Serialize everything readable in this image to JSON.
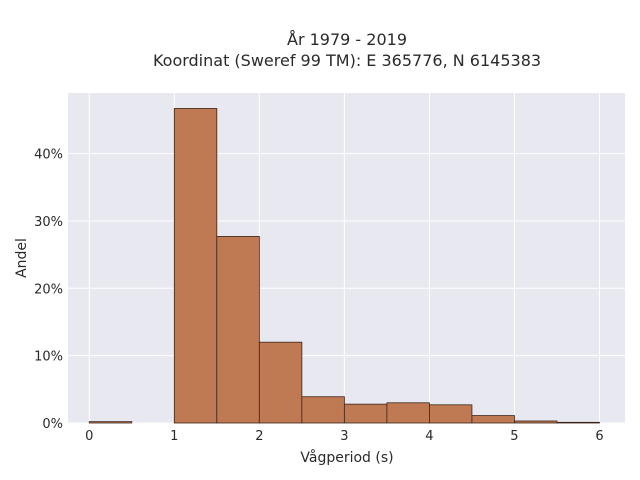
{
  "chart_data": {
    "type": "bar",
    "title_lines": [
      "År 1979 - 2019",
      "Koordinat (Sweref 99 TM): E 365776, N 6145383"
    ],
    "xlabel": "Vågperiod (s)",
    "ylabel": "Andel",
    "xlim": [
      -0.25,
      6.3
    ],
    "ylim": [
      0,
      0.49
    ],
    "xticks": [
      0,
      1,
      2,
      3,
      4,
      5,
      6
    ],
    "yticks": [
      0,
      0.1,
      0.2,
      0.3,
      0.4
    ],
    "ytick_labels": [
      "0%",
      "10%",
      "20%",
      "30%",
      "40%"
    ],
    "grid": true,
    "bar_color": "#c07a53",
    "bar_edge_color": "#3a2418",
    "background_color": "#e8e8f1",
    "bins": [
      {
        "start": 0.0,
        "end": 0.5,
        "value": 0.002
      },
      {
        "start": 0.5,
        "end": 1.0,
        "value": 0.0
      },
      {
        "start": 1.0,
        "end": 1.5,
        "value": 0.467
      },
      {
        "start": 1.5,
        "end": 2.0,
        "value": 0.277
      },
      {
        "start": 2.0,
        "end": 2.5,
        "value": 0.12
      },
      {
        "start": 2.5,
        "end": 3.0,
        "value": 0.039
      },
      {
        "start": 3.0,
        "end": 3.5,
        "value": 0.028
      },
      {
        "start": 3.5,
        "end": 4.0,
        "value": 0.03
      },
      {
        "start": 4.0,
        "end": 4.5,
        "value": 0.027
      },
      {
        "start": 4.5,
        "end": 5.0,
        "value": 0.011
      },
      {
        "start": 5.0,
        "end": 5.5,
        "value": 0.003
      },
      {
        "start": 5.5,
        "end": 6.0,
        "value": 0.001
      }
    ]
  }
}
